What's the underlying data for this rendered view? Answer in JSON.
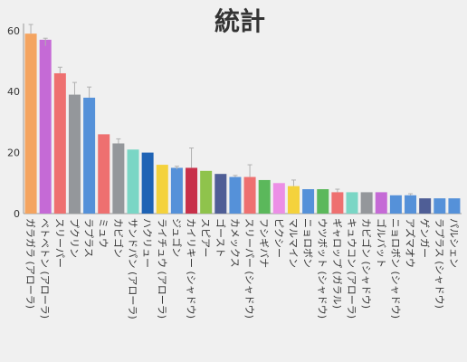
{
  "chart_data": {
    "type": "bar",
    "title": "統計",
    "xlabel": "",
    "ylabel": "",
    "ylim": [
      0,
      65
    ],
    "yticks": [
      "0",
      "20",
      "40",
      "60"
    ],
    "grid": false,
    "legend": "none",
    "categories": [
      "ガラガラ (アローラ)",
      "ベトベトン (アローラ)",
      "スリーパー",
      "プクリン",
      "ラプラス",
      "ミュウ",
      "カビゴン",
      "サンドパン (アローラ)",
      "ハクリュー",
      "ライチュウ (アローラ)",
      "ジュゴン",
      "カイリキー (シャドウ)",
      "スピアー",
      "ゴースト",
      "カメックス",
      "スリーパー (シャドウ)",
      "フシギバナ",
      "ピクシー",
      "マルマイン",
      "ニョロボン",
      "ウツボット (シャドウ)",
      "ギャロップ (ガラル)",
      "キュウコン (アローラ)",
      "カビゴン (シャドウ)",
      "ゴルバット",
      "ニョロボン (シャドウ)",
      "アズマオウ",
      "ゲンガー",
      "ラプラス (シャドウ)",
      "パルシェン"
    ],
    "values": [
      59,
      57,
      46,
      39,
      38,
      26,
      23,
      21,
      20,
      16,
      15,
      15,
      14,
      13,
      12,
      12,
      11,
      10,
      9,
      8,
      8,
      7,
      7,
      7,
      7,
      6,
      6,
      5,
      5,
      5
    ],
    "error": [
      [
        null,
        62
      ],
      [
        55,
        57.5
      ],
      [
        null,
        48
      ],
      [
        null,
        43
      ],
      [
        null,
        41.5
      ],
      [
        null,
        null
      ],
      [
        null,
        24.5
      ],
      [
        null,
        null
      ],
      [
        null,
        null
      ],
      [
        null,
        null
      ],
      [
        14.5,
        15.5
      ],
      [
        null,
        21.5
      ],
      [
        null,
        null
      ],
      [
        null,
        null
      ],
      [
        null,
        12.5
      ],
      [
        null,
        16
      ],
      [
        null,
        null
      ],
      [
        null,
        null
      ],
      [
        null,
        11
      ],
      [
        null,
        null
      ],
      [
        null,
        null
      ],
      [
        null,
        8
      ],
      [
        null,
        null
      ],
      [
        null,
        null
      ],
      [
        null,
        null
      ],
      [
        null,
        null
      ],
      [
        null,
        6.5
      ],
      [
        null,
        null
      ],
      [
        null,
        null
      ],
      [
        null,
        null
      ]
    ],
    "colors": [
      "#f4a460",
      "#c56ad6",
      "#ee7070",
      "#94979b",
      "#5591d9",
      "#ee7070",
      "#94979b",
      "#7ad6c5",
      "#1f63b5",
      "#f4d23c",
      "#5591d9",
      "#c8304a",
      "#8fc34c",
      "#4f5e96",
      "#5591d9",
      "#ee7070",
      "#5bb85b",
      "#ec8fe6",
      "#f4d23c",
      "#5591d9",
      "#5bb85b",
      "#ee7070",
      "#7ad6c5",
      "#94979b",
      "#c56ad6",
      "#5591d9",
      "#5591d9",
      "#4f5e96",
      "#5591d9",
      "#5591d9"
    ]
  }
}
